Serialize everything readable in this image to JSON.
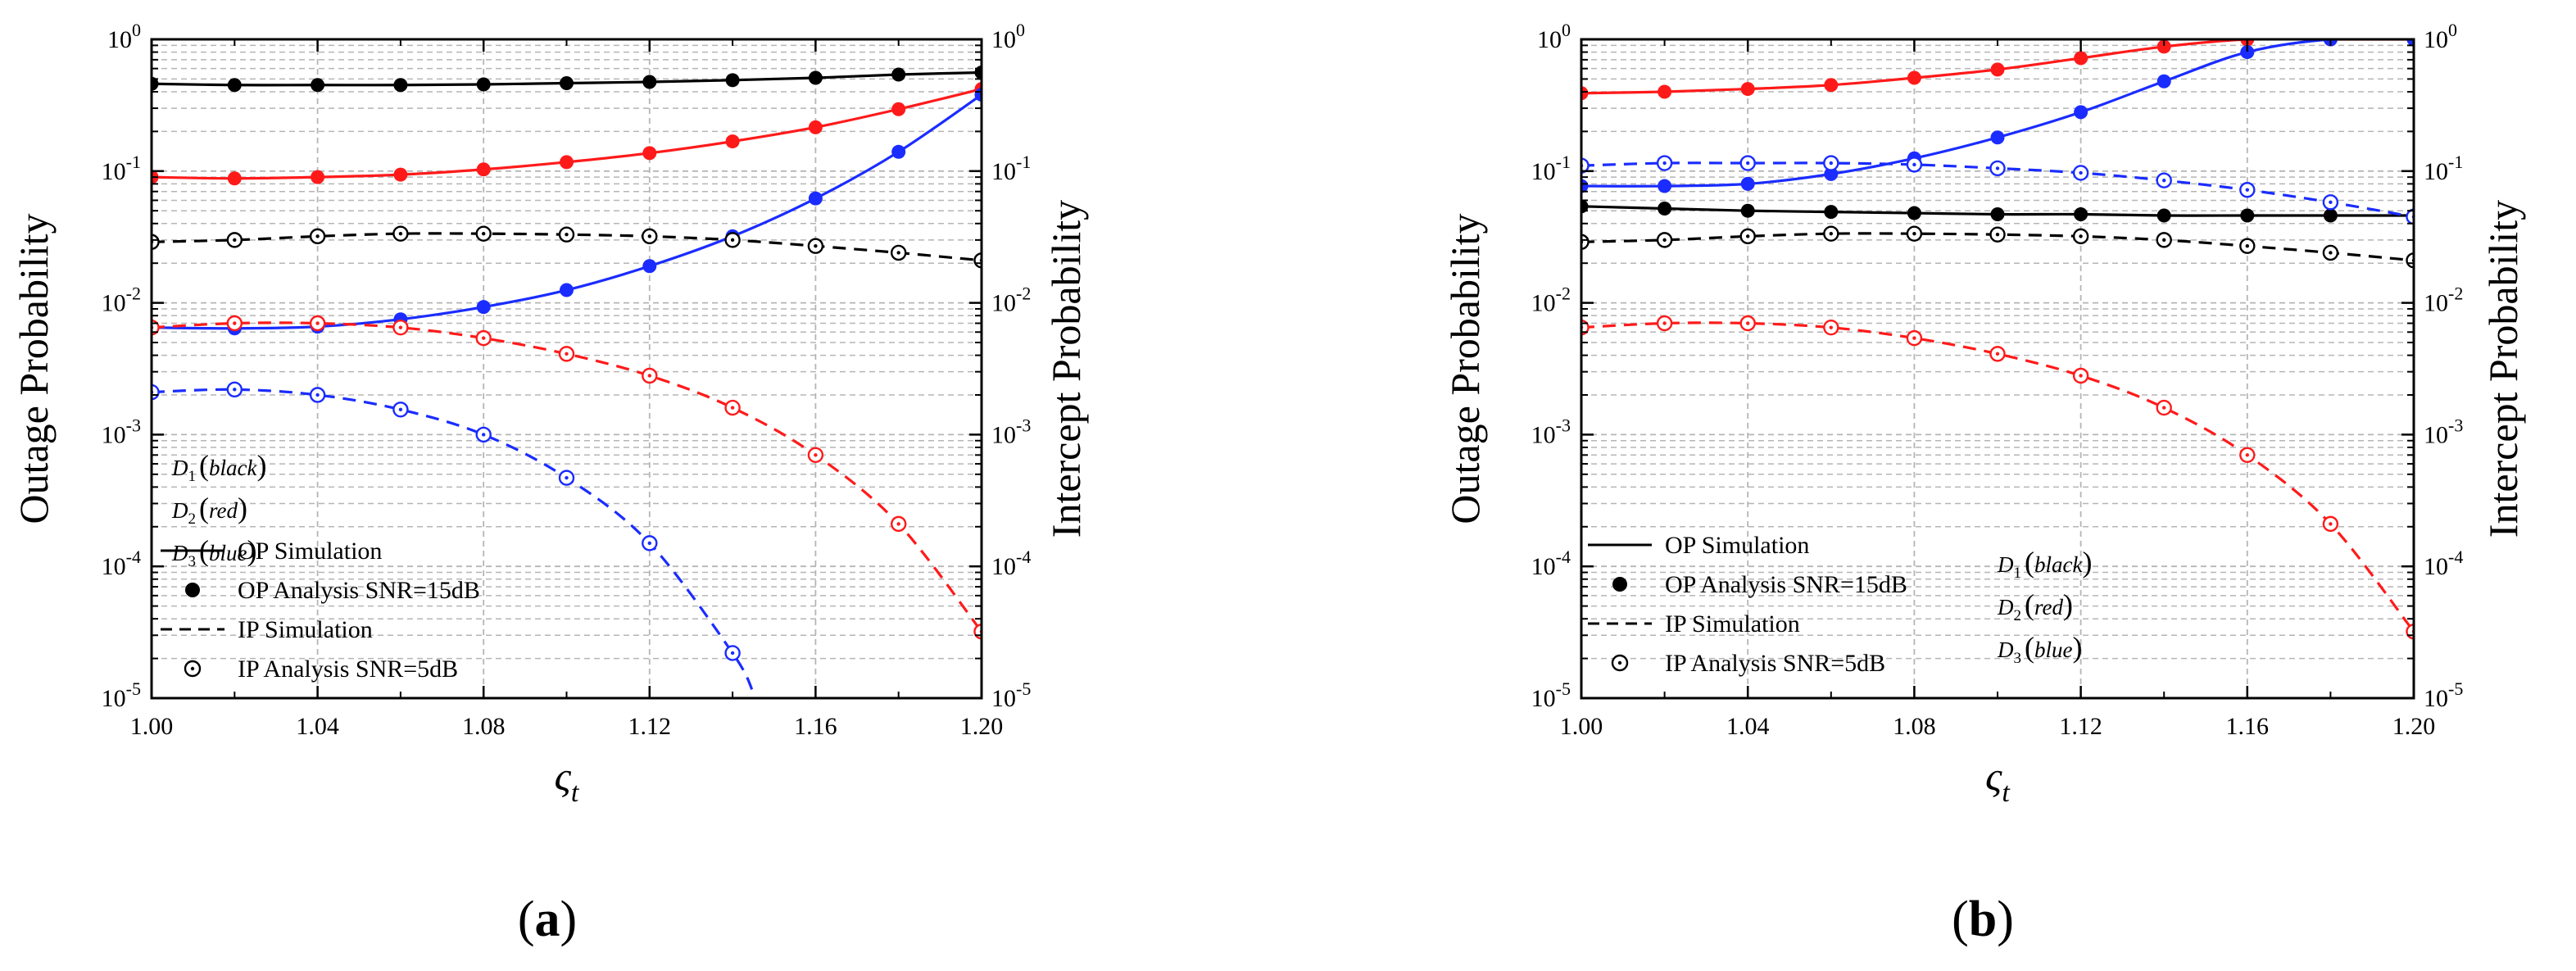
{
  "figure": {
    "colors": {
      "black": "#000000",
      "red": "#ff1a1a",
      "blue": "#1a2cff",
      "grid": "#b5b5b5"
    },
    "panels": [
      {
        "label_left": "(",
        "label_letter": "a",
        "label_right": ")"
      },
      {
        "label_left": "(",
        "label_letter": "b",
        "label_right": ")"
      }
    ]
  },
  "chart_data": [
    {
      "type": "line",
      "title": "",
      "panel": "(a)",
      "xlabel": "ς",
      "xlabel_sub": "t",
      "ylabel": "Outage Probability",
      "y2label": "Intercept Probability",
      "xlim": [
        1.0,
        1.2
      ],
      "ylim": [
        1e-05,
        1
      ],
      "yscale": "log",
      "xticks": [
        "1.00",
        "1.04",
        "1.08",
        "1.12",
        "1.16",
        "1.20"
      ],
      "yticks": [
        {
          "base": "10",
          "exp": "0"
        },
        {
          "base": "10",
          "exp": "-1"
        },
        {
          "base": "10",
          "exp": "-2"
        },
        {
          "base": "10",
          "exp": "-3"
        },
        {
          "base": "10",
          "exp": "-4"
        },
        {
          "base": "10",
          "exp": "-5"
        }
      ],
      "y2ticks": [
        {
          "base": "10",
          "exp": "0"
        },
        {
          "base": "10",
          "exp": "-1"
        },
        {
          "base": "10",
          "exp": "-2"
        },
        {
          "base": "10",
          "exp": "-3"
        },
        {
          "base": "10",
          "exp": "-4"
        },
        {
          "base": "10",
          "exp": "-5"
        }
      ],
      "grid": true,
      "legend": {
        "position": "bottom-left",
        "entries": [
          "OP Simulation",
          "OP Analysis SNR=15dB",
          "IP Simulation",
          "IP Analysis SNR=5dB"
        ],
        "users": [
          {
            "sym": "D",
            "sub": "1",
            "name": "black"
          },
          {
            "sym": "D",
            "sub": "2",
            "name": "red"
          },
          {
            "sym": "D",
            "sub": "3",
            "name": "blue"
          }
        ],
        "users_position": "left"
      },
      "series": [
        {
          "name": "OP D1",
          "kind": "op",
          "color": "black",
          "x": [
            1.0,
            1.02,
            1.04,
            1.06,
            1.08,
            1.1,
            1.12,
            1.14,
            1.16,
            1.18,
            1.2
          ],
          "values": [
            0.46,
            0.45,
            0.45,
            0.45,
            0.455,
            0.465,
            0.475,
            0.49,
            0.51,
            0.54,
            0.56
          ]
        },
        {
          "name": "OP D2",
          "kind": "op",
          "color": "red",
          "x": [
            1.0,
            1.02,
            1.04,
            1.06,
            1.08,
            1.1,
            1.12,
            1.14,
            1.16,
            1.18,
            1.2
          ],
          "values": [
            0.09,
            0.088,
            0.09,
            0.094,
            0.103,
            0.117,
            0.137,
            0.168,
            0.215,
            0.295,
            0.42
          ]
        },
        {
          "name": "OP D3",
          "kind": "op",
          "color": "blue",
          "x": [
            1.0,
            1.02,
            1.04,
            1.06,
            1.08,
            1.1,
            1.12,
            1.14,
            1.16,
            1.18,
            1.2
          ],
          "values": [
            0.0065,
            0.0064,
            0.0066,
            0.0075,
            0.0093,
            0.0125,
            0.019,
            0.032,
            0.062,
            0.14,
            0.38
          ]
        },
        {
          "name": "IP D1",
          "kind": "ip",
          "color": "black",
          "x": [
            1.0,
            1.02,
            1.04,
            1.06,
            1.08,
            1.1,
            1.12,
            1.14,
            1.16,
            1.18,
            1.2
          ],
          "values": [
            0.029,
            0.03,
            0.032,
            0.0335,
            0.0335,
            0.033,
            0.032,
            0.03,
            0.027,
            0.024,
            0.021
          ]
        },
        {
          "name": "IP D2",
          "kind": "ip",
          "color": "red",
          "x": [
            1.0,
            1.02,
            1.04,
            1.06,
            1.08,
            1.1,
            1.12,
            1.14,
            1.16,
            1.18,
            1.2
          ],
          "values": [
            0.0065,
            0.007,
            0.007,
            0.0065,
            0.0054,
            0.0041,
            0.0028,
            0.0016,
            0.0007,
            0.00021,
            3.2e-05
          ]
        },
        {
          "name": "IP D3",
          "kind": "ip",
          "color": "blue",
          "x": [
            1.0,
            1.02,
            1.04,
            1.06,
            1.08,
            1.1,
            1.12,
            1.14,
            1.145
          ],
          "values": [
            0.0021,
            0.0022,
            0.002,
            0.00155,
            0.001,
            0.00047,
            0.00015,
            2.2e-05,
            1.1e-05
          ],
          "marker_count": 8
        }
      ]
    },
    {
      "type": "line",
      "title": "",
      "panel": "(b)",
      "xlabel": "ς",
      "xlabel_sub": "t",
      "ylabel": "Outage Probability",
      "y2label": "Intercept Probability",
      "xlim": [
        1.0,
        1.2
      ],
      "ylim": [
        1e-05,
        1
      ],
      "yscale": "log",
      "xticks": [
        "1.00",
        "1.04",
        "1.08",
        "1.12",
        "1.16",
        "1.20"
      ],
      "yticks": [
        {
          "base": "10",
          "exp": "0"
        },
        {
          "base": "10",
          "exp": "-1"
        },
        {
          "base": "10",
          "exp": "-2"
        },
        {
          "base": "10",
          "exp": "-3"
        },
        {
          "base": "10",
          "exp": "-4"
        },
        {
          "base": "10",
          "exp": "-5"
        }
      ],
      "y2ticks": [
        {
          "base": "10",
          "exp": "0"
        },
        {
          "base": "10",
          "exp": "-1"
        },
        {
          "base": "10",
          "exp": "-2"
        },
        {
          "base": "10",
          "exp": "-3"
        },
        {
          "base": "10",
          "exp": "-4"
        },
        {
          "base": "10",
          "exp": "-5"
        }
      ],
      "grid": true,
      "legend": {
        "position": "bottom-left",
        "entries": [
          "OP Simulation",
          "OP Analysis SNR=15dB",
          "IP Simulation",
          "IP Analysis SNR=5dB"
        ],
        "users": [
          {
            "sym": "D",
            "sub": "1",
            "name": "black"
          },
          {
            "sym": "D",
            "sub": "2",
            "name": "red"
          },
          {
            "sym": "D",
            "sub": "3",
            "name": "blue"
          }
        ],
        "users_position": "right"
      },
      "series": [
        {
          "name": "OP D1",
          "kind": "op",
          "color": "black",
          "x": [
            1.0,
            1.02,
            1.04,
            1.06,
            1.08,
            1.1,
            1.12,
            1.14,
            1.16,
            1.18,
            1.2
          ],
          "values": [
            0.054,
            0.052,
            0.05,
            0.049,
            0.048,
            0.047,
            0.047,
            0.046,
            0.046,
            0.046,
            0.046
          ]
        },
        {
          "name": "OP D2",
          "kind": "op",
          "color": "red",
          "x": [
            1.0,
            1.02,
            1.04,
            1.06,
            1.08,
            1.1,
            1.12,
            1.14,
            1.16,
            1.18,
            1.2
          ],
          "values": [
            0.39,
            0.4,
            0.42,
            0.45,
            0.51,
            0.59,
            0.72,
            0.88,
            1.0,
            1.0,
            1.0
          ]
        },
        {
          "name": "OP D3",
          "kind": "op",
          "color": "blue",
          "x": [
            1.0,
            1.02,
            1.04,
            1.06,
            1.08,
            1.1,
            1.12,
            1.14,
            1.16,
            1.18,
            1.2
          ],
          "values": [
            0.077,
            0.077,
            0.08,
            0.095,
            0.125,
            0.18,
            0.28,
            0.48,
            0.8,
            1.0,
            1.0
          ]
        },
        {
          "name": "IP D1",
          "kind": "ip",
          "color": "black",
          "x": [
            1.0,
            1.02,
            1.04,
            1.06,
            1.08,
            1.1,
            1.12,
            1.14,
            1.16,
            1.18,
            1.2
          ],
          "values": [
            0.029,
            0.03,
            0.032,
            0.0335,
            0.0335,
            0.033,
            0.032,
            0.03,
            0.027,
            0.024,
            0.021
          ]
        },
        {
          "name": "IP D2",
          "kind": "ip",
          "color": "red",
          "x": [
            1.0,
            1.02,
            1.04,
            1.06,
            1.08,
            1.1,
            1.12,
            1.14,
            1.16,
            1.18,
            1.2
          ],
          "values": [
            0.0065,
            0.007,
            0.007,
            0.0065,
            0.0054,
            0.0041,
            0.0028,
            0.0016,
            0.0007,
            0.00021,
            3.2e-05
          ]
        },
        {
          "name": "IP D3",
          "kind": "ip",
          "color": "blue",
          "x": [
            1.0,
            1.02,
            1.04,
            1.06,
            1.08,
            1.1,
            1.12,
            1.14,
            1.16,
            1.18,
            1.2
          ],
          "values": [
            0.11,
            0.115,
            0.115,
            0.115,
            0.112,
            0.105,
            0.097,
            0.085,
            0.072,
            0.058,
            0.045
          ]
        }
      ]
    }
  ]
}
